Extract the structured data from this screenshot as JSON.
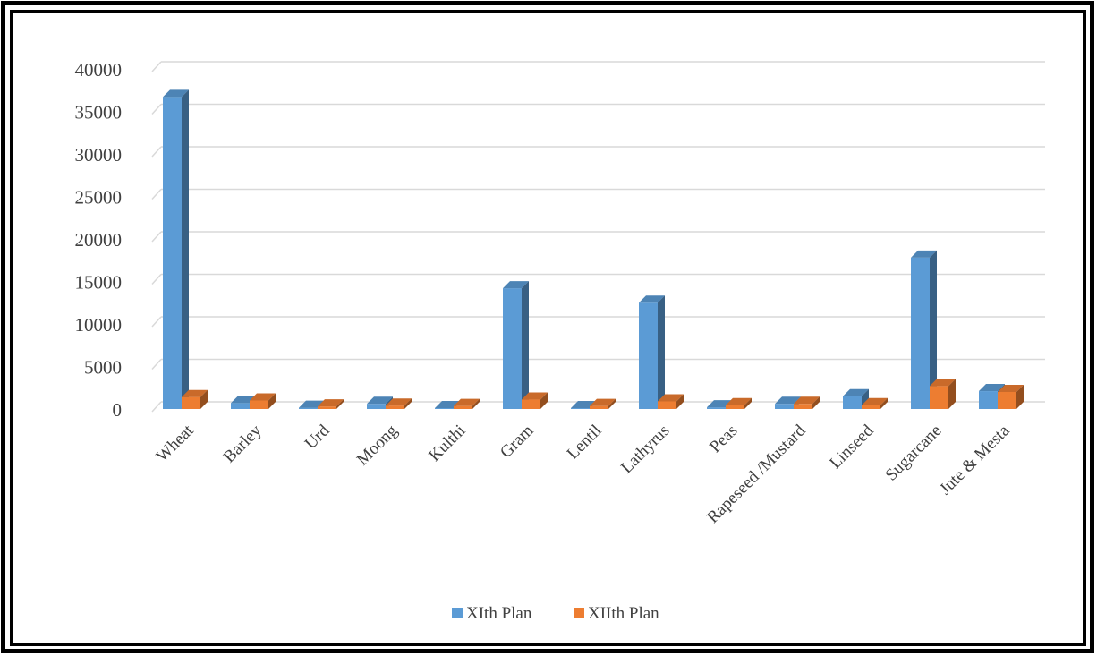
{
  "chart_data": {
    "type": "bar",
    "title": "",
    "xlabel": "",
    "ylabel": "",
    "ylim": [
      0,
      40000
    ],
    "yticks": [
      "0",
      "5000",
      "10000",
      "15000",
      "20000",
      "25000",
      "30000",
      "35000",
      "40000"
    ],
    "categories": [
      "Wheat",
      "Barley",
      "Urd",
      "Moong",
      "Kulthi",
      "Gram",
      "Lentil",
      "Lathyrus",
      "Peas",
      "Rapeseed /Mustard",
      "Linseed",
      "Sugarcane",
      "Jute & Mesta"
    ],
    "series": [
      {
        "name": "XIth Plan",
        "values": [
          36700,
          700,
          150,
          600,
          50,
          14200,
          50,
          12500,
          200,
          600,
          1500,
          17800,
          2100
        ]
      },
      {
        "name": "XIIth Plan",
        "values": [
          1400,
          1000,
          300,
          400,
          350,
          1100,
          350,
          900,
          450,
          600,
          450,
          2700,
          2000
        ]
      }
    ],
    "grid": true,
    "legend_position": "bottom",
    "colors": {
      "XIth Plan": "#5b9bd5",
      "XIIth Plan": "#ed7d31"
    }
  }
}
